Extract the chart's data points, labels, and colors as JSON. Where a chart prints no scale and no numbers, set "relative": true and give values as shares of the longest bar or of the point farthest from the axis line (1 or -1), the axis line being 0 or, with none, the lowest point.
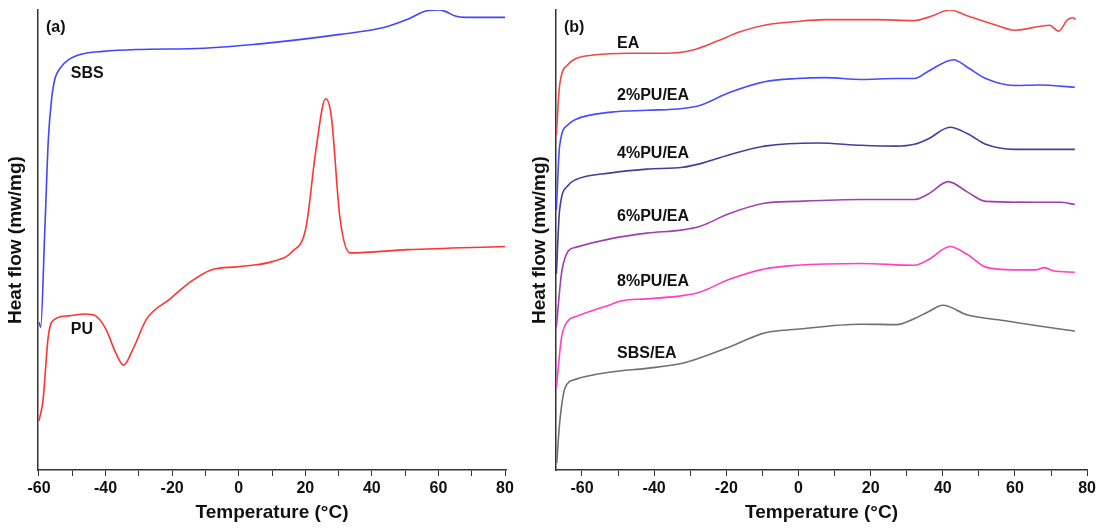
{
  "chart_data": [
    {
      "type": "line",
      "relative": true,
      "xlabel": "Temperature (°C)",
      "ylabel": "Heat flow (mw/mg)",
      "annotations": [
        "(a)"
      ],
      "tick_labels": "x",
      "grid": false,
      "legend": false,
      "marker": "none",
      "line_style": "solid",
      "xlim": [
        -60.3,
        80.3
      ],
      "xticks": [
        -60,
        {
          "value": -50,
          "label": null
        },
        -40,
        {
          "value": -30,
          "label": null
        },
        -20,
        {
          "value": -10,
          "label": null
        },
        0,
        {
          "value": 10,
          "label": null
        },
        20,
        {
          "value": 30,
          "label": null
        },
        40,
        {
          "value": 50,
          "label": null
        },
        60,
        {
          "value": 70,
          "label": null
        },
        80
      ],
      "series": [
        {
          "name": "SBS",
          "color": "#4444ff",
          "x": [
            -60,
            -59.5,
            -58.3,
            -57.2,
            -56.2,
            -55.2,
            -53.7,
            -51.1,
            -46,
            -40.9,
            -30.8,
            -10.4,
            10,
            30.4,
            43.6,
            50.8,
            56.9,
            59.9,
            62,
            65,
            68.1,
            80
          ],
          "values": [
            0.321,
            0.31,
            0.512,
            0.718,
            0.807,
            0.851,
            0.873,
            0.892,
            0.906,
            0.91,
            0.914,
            0.917,
            0.929,
            0.947,
            0.962,
            0.98,
            0.999,
            1,
            0.997,
            0.987,
            0.984,
            0.984
          ]
        },
        {
          "name": "PU",
          "color": "#ff3333",
          "x": [
            -60,
            -58.8,
            -57.2,
            -55.2,
            -51.1,
            -46,
            -43,
            -39.9,
            -36.9,
            -34.6,
            -31.8,
            -27.7,
            -20.6,
            -14.5,
            -8.3,
            -0.2,
            10,
            16.1,
            20.2,
            23.2,
            26.1,
            27.8,
            30.4,
            33.4,
            50.8,
            80
          ],
          "values": [
            0.107,
            0.151,
            0.291,
            0.328,
            0.335,
            0.339,
            0.335,
            0.306,
            0.254,
            0.228,
            0.262,
            0.328,
            0.372,
            0.409,
            0.435,
            0.442,
            0.453,
            0.475,
            0.527,
            0.696,
            0.807,
            0.77,
            0.549,
            0.472,
            0.479,
            0.486
          ]
        }
      ]
    },
    {
      "type": "line",
      "relative": true,
      "xlabel": "Temperature (°C)",
      "ylabel": "Heat flow (mw/mg)",
      "annotations": [
        "(b)"
      ],
      "tick_labels": "x",
      "grid": false,
      "legend": false,
      "marker": "none",
      "line_style": "solid",
      "xlim": [
        -67.2,
        80
      ],
      "xticks": [
        -60,
        {
          "value": -50,
          "label": null
        },
        -40,
        {
          "value": -30,
          "label": null
        },
        -20,
        {
          "value": -10,
          "label": null
        },
        0,
        {
          "value": 10,
          "label": null
        },
        20,
        {
          "value": 30,
          "label": null
        },
        40,
        {
          "value": 50,
          "label": null
        },
        60,
        {
          "value": 70,
          "label": null
        },
        80
      ],
      "series": [
        {
          "name": "EA",
          "color": "#f04848",
          "x": [
            -67.1,
            -66.2,
            -63.8,
            -61.8,
            -56.8,
            -47,
            -37.1,
            -29.2,
            -22.3,
            -16.4,
            -9.4,
            -0.5,
            7.4,
            21.2,
            32.1,
            37,
            42,
            46.9,
            54.8,
            59.8,
            66.7,
            69.6,
            72.1,
            74.6,
            76.1,
            76.8
          ],
          "values": [
            0.728,
            0.836,
            0.882,
            0.894,
            0.902,
            0.906,
            0.906,
            0.913,
            0.933,
            0.952,
            0.967,
            0.975,
            0.979,
            0.979,
            0.977,
            0.987,
            1,
            0.987,
            0.967,
            0.956,
            0.964,
            0.967,
            0.954,
            0.979,
            0.983,
            0.979
          ]
        },
        {
          "name": "2%PU/EA",
          "color": "#4a4aff",
          "x": [
            -67.1,
            -66.2,
            -63.8,
            -61.8,
            -51.9,
            -42,
            -32.1,
            -27.2,
            -19.3,
            -9.4,
            -0.5,
            7.4,
            17.3,
            27.2,
            32.1,
            36,
            43,
            46.9,
            51.9,
            59.8,
            66.7,
            76.6
          ],
          "values": [
            0.565,
            0.704,
            0.751,
            0.762,
            0.778,
            0.782,
            0.786,
            0.793,
            0.82,
            0.844,
            0.851,
            0.853,
            0.849,
            0.851,
            0.851,
            0.867,
            0.892,
            0.875,
            0.851,
            0.836,
            0.837,
            0.832
          ]
        },
        {
          "name": "4%PU/EA",
          "color": "#40409a",
          "x": [
            -67.1,
            -66.2,
            -63.8,
            -61.8,
            -51.9,
            -42,
            -32.1,
            -27.2,
            -19.3,
            -9.4,
            5.4,
            17.3,
            27.2,
            32.1,
            36,
            42,
            46.9,
            51.9,
            59.8,
            76.6
          ],
          "values": [
            0.426,
            0.565,
            0.619,
            0.631,
            0.646,
            0.654,
            0.658,
            0.666,
            0.685,
            0.704,
            0.711,
            0.706,
            0.704,
            0.708,
            0.72,
            0.745,
            0.731,
            0.708,
            0.697,
            0.697
          ]
        },
        {
          "name": "6%PU/EA",
          "color": "#a040b0",
          "x": [
            -67.1,
            -65.7,
            -63.8,
            -61.8,
            -51.9,
            -42,
            -32.1,
            -27.2,
            -19.3,
            -9.4,
            -0.5,
            17.3,
            32.1,
            36,
            41.5,
            46.9,
            51.9,
            66.7,
            72.6,
            76.6
          ],
          "values": [
            0.31,
            0.426,
            0.476,
            0.484,
            0.503,
            0.515,
            0.522,
            0.53,
            0.557,
            0.58,
            0.584,
            0.588,
            0.588,
            0.6,
            0.627,
            0.604,
            0.584,
            0.582,
            0.582,
            0.577
          ]
        },
        {
          "name": "8%PU/EA",
          "color": "#ff40c0",
          "x": [
            -67.1,
            -65.7,
            -63.8,
            -61.8,
            -51.9,
            -48.9,
            -42,
            -32.1,
            -27.2,
            -19.3,
            -9.4,
            -0.5,
            17.3,
            32.1,
            36,
            42,
            46.9,
            51.9,
            59.8,
            65.7,
            68.2,
            70.6,
            76.6
          ],
          "values": [
            0.178,
            0.286,
            0.325,
            0.333,
            0.36,
            0.368,
            0.372,
            0.379,
            0.387,
            0.414,
            0.437,
            0.445,
            0.449,
            0.445,
            0.457,
            0.486,
            0.468,
            0.441,
            0.435,
            0.435,
            0.44,
            0.433,
            0.43
          ]
        },
        {
          "name": "SBS/EA",
          "color": "#707070",
          "x": [
            -67,
            -66.2,
            -64.7,
            -61.8,
            -51.9,
            -42,
            -32.1,
            -27.2,
            -19.3,
            -9.4,
            -0.5,
            17.3,
            27.2,
            32.1,
            36,
            40,
            46.9,
            56.8,
            66.7,
            76.6
          ],
          "values": [
            0.015,
            0.101,
            0.178,
            0.197,
            0.213,
            0.221,
            0.232,
            0.244,
            0.267,
            0.298,
            0.306,
            0.317,
            0.316,
            0.329,
            0.344,
            0.358,
            0.337,
            0.325,
            0.313,
            0.302
          ]
        }
      ]
    }
  ]
}
